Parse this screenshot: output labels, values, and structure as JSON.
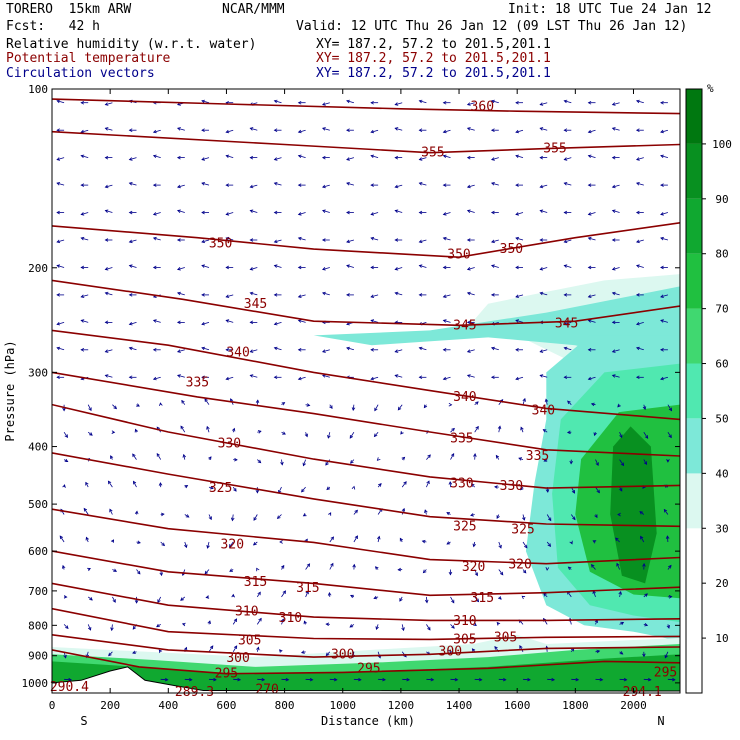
{
  "header": {
    "model": "TORERO  15km ARW",
    "center": "NCAR/MMM",
    "init": "Init: 18 UTC Tue 24 Jan 12",
    "fcst": "Fcst:   42 h",
    "valid": "Valid: 12 UTC Thu 26 Jan 12 (09 LST Thu 26 Jan 12)",
    "fields": [
      {
        "name": "Relative humidity (w.r.t. water)",
        "xy": "XY= 187.2, 57.2 to 201.5,201.1",
        "color": "#000000"
      },
      {
        "name": "Potential temperature",
        "xy": "XY= 187.2, 57.2 to 201.5,201.1",
        "color": "#8b0000"
      },
      {
        "name": "Circulation vectors",
        "xy": "XY= 187.2, 57.2 to 201.5,201.1",
        "color": "#00008b"
      }
    ]
  },
  "chart_data": {
    "type": "heatmap",
    "xlabel": "Distance (km)",
    "ylabel": "Pressure (hPa)",
    "x_ticks": [
      0,
      200,
      400,
      600,
      800,
      1000,
      1200,
      1400,
      1600,
      1800,
      2000
    ],
    "y_ticks": [
      100,
      200,
      300,
      400,
      500,
      600,
      700,
      800,
      900,
      1000
    ],
    "xlim": [
      0,
      2160
    ],
    "ylim": [
      1040,
      100
    ],
    "y_scale": "log",
    "x_end_labels": {
      "left": "S",
      "right": "N"
    },
    "colorbar": {
      "unit": "%",
      "ticks": [
        10,
        20,
        30,
        40,
        50,
        60,
        70,
        80,
        90,
        100
      ],
      "levels": [
        0,
        10,
        20,
        30,
        40,
        50,
        60,
        70,
        80,
        90,
        100,
        110
      ],
      "colors": [
        "#ffffff",
        "#ffffff",
        "#ffffff",
        "#dcf8f0",
        "#7de8d8",
        "#50e8b0",
        "#40d870",
        "#20c040",
        "#10a830",
        "#089020",
        "#007810"
      ]
    },
    "theta_contours": [
      {
        "label": "360",
        "points": [
          [
            0,
            104
          ],
          [
            600,
            106
          ],
          [
            1200,
            108
          ],
          [
            1600,
            109
          ],
          [
            2160,
            110
          ]
        ]
      },
      {
        "label": "355",
        "points": [
          [
            0,
            118
          ],
          [
            800,
            124
          ],
          [
            1300,
            128
          ],
          [
            1700,
            126
          ],
          [
            2160,
            124
          ]
        ]
      },
      {
        "label": "350",
        "points": [
          [
            0,
            170
          ],
          [
            500,
            178
          ],
          [
            900,
            186
          ],
          [
            1400,
            192
          ],
          [
            1800,
            178
          ],
          [
            2160,
            168
          ]
        ]
      },
      {
        "label": "345",
        "points": [
          [
            0,
            210
          ],
          [
            450,
            226
          ],
          [
            900,
            246
          ],
          [
            1400,
            250
          ],
          [
            1800,
            246
          ],
          [
            2160,
            232
          ]
        ]
      },
      {
        "label": "340",
        "points": [
          [
            0,
            255
          ],
          [
            400,
            270
          ],
          [
            900,
            300
          ],
          [
            1300,
            322
          ],
          [
            1700,
            345
          ],
          [
            2160,
            360
          ]
        ]
      },
      {
        "label": "335",
        "points": [
          [
            0,
            300
          ],
          [
            500,
            330
          ],
          [
            900,
            352
          ],
          [
            1300,
            378
          ],
          [
            1700,
            405
          ],
          [
            2160,
            415
          ]
        ]
      },
      {
        "label": "330",
        "points": [
          [
            0,
            340
          ],
          [
            400,
            378
          ],
          [
            900,
            420
          ],
          [
            1300,
            450
          ],
          [
            1700,
            470
          ],
          [
            2160,
            465
          ]
        ]
      },
      {
        "label": "325",
        "points": [
          [
            0,
            410
          ],
          [
            400,
            445
          ],
          [
            900,
            490
          ],
          [
            1300,
            525
          ],
          [
            1700,
            540
          ],
          [
            2160,
            545
          ]
        ]
      },
      {
        "label": "320",
        "points": [
          [
            0,
            510
          ],
          [
            400,
            550
          ],
          [
            900,
            580
          ],
          [
            1300,
            620
          ],
          [
            1700,
            630
          ],
          [
            2160,
            615
          ]
        ]
      },
      {
        "label": "315",
        "points": [
          [
            0,
            600
          ],
          [
            400,
            650
          ],
          [
            900,
            680
          ],
          [
            1300,
            712
          ],
          [
            1700,
            705
          ],
          [
            2160,
            690
          ]
        ]
      },
      {
        "label": "310",
        "points": [
          [
            0,
            680
          ],
          [
            400,
            740
          ],
          [
            900,
            775
          ],
          [
            1300,
            785
          ],
          [
            1700,
            785
          ],
          [
            2160,
            780
          ]
        ]
      },
      {
        "label": "305",
        "points": [
          [
            0,
            750
          ],
          [
            400,
            820
          ],
          [
            900,
            842
          ],
          [
            1300,
            845
          ],
          [
            1700,
            838
          ],
          [
            2160,
            835
          ]
        ]
      },
      {
        "label": "300",
        "points": [
          [
            0,
            830
          ],
          [
            400,
            880
          ],
          [
            900,
            905
          ],
          [
            1300,
            895
          ],
          [
            1700,
            875
          ],
          [
            2160,
            870
          ]
        ]
      },
      {
        "label": "295",
        "points": [
          [
            0,
            880
          ],
          [
            300,
            940
          ],
          [
            600,
            965
          ],
          [
            1000,
            960
          ],
          [
            1500,
            945
          ],
          [
            1900,
            920
          ],
          [
            2160,
            925
          ]
        ]
      }
    ],
    "contour_labels": [
      {
        "text": "360",
        "x": 1480,
        "p": 107
      },
      {
        "text": "355",
        "x": 1310,
        "p": 128
      },
      {
        "text": "355",
        "x": 1730,
        "p": 126
      },
      {
        "text": "350",
        "x": 580,
        "p": 182
      },
      {
        "text": "350",
        "x": 1400,
        "p": 190
      },
      {
        "text": "350",
        "x": 1580,
        "p": 186
      },
      {
        "text": "345",
        "x": 700,
        "p": 230
      },
      {
        "text": "345",
        "x": 1420,
        "p": 250
      },
      {
        "text": "345",
        "x": 1770,
        "p": 248
      },
      {
        "text": "340",
        "x": 640,
        "p": 278
      },
      {
        "text": "340",
        "x": 1420,
        "p": 330
      },
      {
        "text": "340",
        "x": 1690,
        "p": 348
      },
      {
        "text": "335",
        "x": 500,
        "p": 312
      },
      {
        "text": "335",
        "x": 1410,
        "p": 388
      },
      {
        "text": "335",
        "x": 1670,
        "p": 415
      },
      {
        "text": "330",
        "x": 610,
        "p": 395
      },
      {
        "text": "330",
        "x": 1410,
        "p": 462
      },
      {
        "text": "330",
        "x": 1580,
        "p": 466
      },
      {
        "text": "325",
        "x": 580,
        "p": 470
      },
      {
        "text": "325",
        "x": 1420,
        "p": 545
      },
      {
        "text": "325",
        "x": 1620,
        "p": 552
      },
      {
        "text": "320",
        "x": 620,
        "p": 585
      },
      {
        "text": "320",
        "x": 1450,
        "p": 638
      },
      {
        "text": "320",
        "x": 1610,
        "p": 632
      },
      {
        "text": "315",
        "x": 700,
        "p": 676
      },
      {
        "text": "315",
        "x": 880,
        "p": 692
      },
      {
        "text": "315",
        "x": 1480,
        "p": 720
      },
      {
        "text": "310",
        "x": 670,
        "p": 758
      },
      {
        "text": "310",
        "x": 820,
        "p": 778
      },
      {
        "text": "310",
        "x": 1420,
        "p": 786
      },
      {
        "text": "305",
        "x": 680,
        "p": 848
      },
      {
        "text": "305",
        "x": 1420,
        "p": 845
      },
      {
        "text": "305",
        "x": 1560,
        "p": 838
      },
      {
        "text": "300",
        "x": 640,
        "p": 908
      },
      {
        "text": "300",
        "x": 1000,
        "p": 895
      },
      {
        "text": "300",
        "x": 1370,
        "p": 885
      },
      {
        "text": "295",
        "x": 600,
        "p": 965
      },
      {
        "text": "295",
        "x": 1090,
        "p": 945
      },
      {
        "text": "295",
        "x": 2110,
        "p": 960
      },
      {
        "text": "290.4",
        "x": 60,
        "p": 1017
      },
      {
        "text": "289.3",
        "x": 490,
        "p": 1035
      },
      {
        "text": "270",
        "x": 740,
        "p": 1025
      },
      {
        "text": "294.1",
        "x": 2030,
        "p": 1035
      }
    ]
  }
}
